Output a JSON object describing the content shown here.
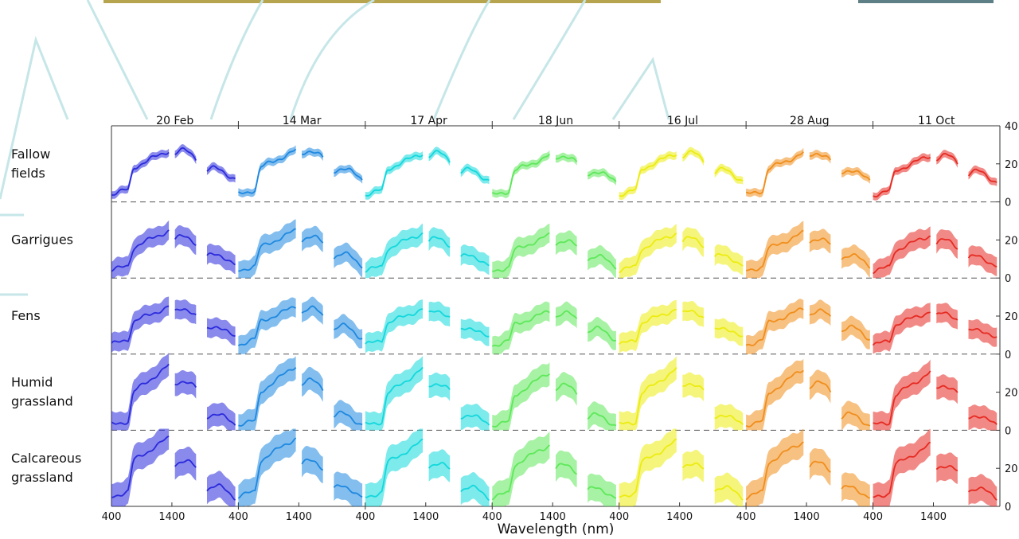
{
  "chart_data": {
    "type": "area",
    "dates": [
      "20 Feb",
      "14 Mar",
      "17 Apr",
      "18 Jun",
      "16 Jul",
      "28 Aug",
      "11 Oct"
    ],
    "date_colors": [
      "#2a2adc",
      "#1e88e0",
      "#12d8dc",
      "#5ee85a",
      "#ecec10",
      "#f08e1c",
      "#e62a22"
    ],
    "classes": [
      "Fallow\nfields",
      "Garrigues",
      "Fens",
      "Humid\ngrassland",
      "Calcareous\ngrassland"
    ],
    "xlabel": "Wavelength (nm)",
    "x_tick_labels": [
      "400",
      "1400"
    ],
    "y_tick_labels": [
      "0",
      "20",
      "40"
    ],
    "ylim": [
      0,
      40
    ],
    "x_segments_nm": [
      [
        400,
        1350
      ],
      [
        1450,
        1800
      ],
      [
        1980,
        2450
      ]
    ],
    "class_profiles": {
      "vis_start": [
        4,
        4,
        5,
        3,
        5
      ],
      "red_edge_top": [
        18,
        16,
        17,
        20,
        24
      ],
      "nir_end": [
        27,
        25,
        25,
        34,
        36
      ],
      "swir1": [
        25,
        20,
        22,
        24,
        22
      ],
      "swir2": [
        16,
        11,
        13,
        7,
        9
      ]
    },
    "band_half_width": [
      2,
      5,
      5,
      6,
      7
    ],
    "grid": false,
    "legend": "none"
  }
}
